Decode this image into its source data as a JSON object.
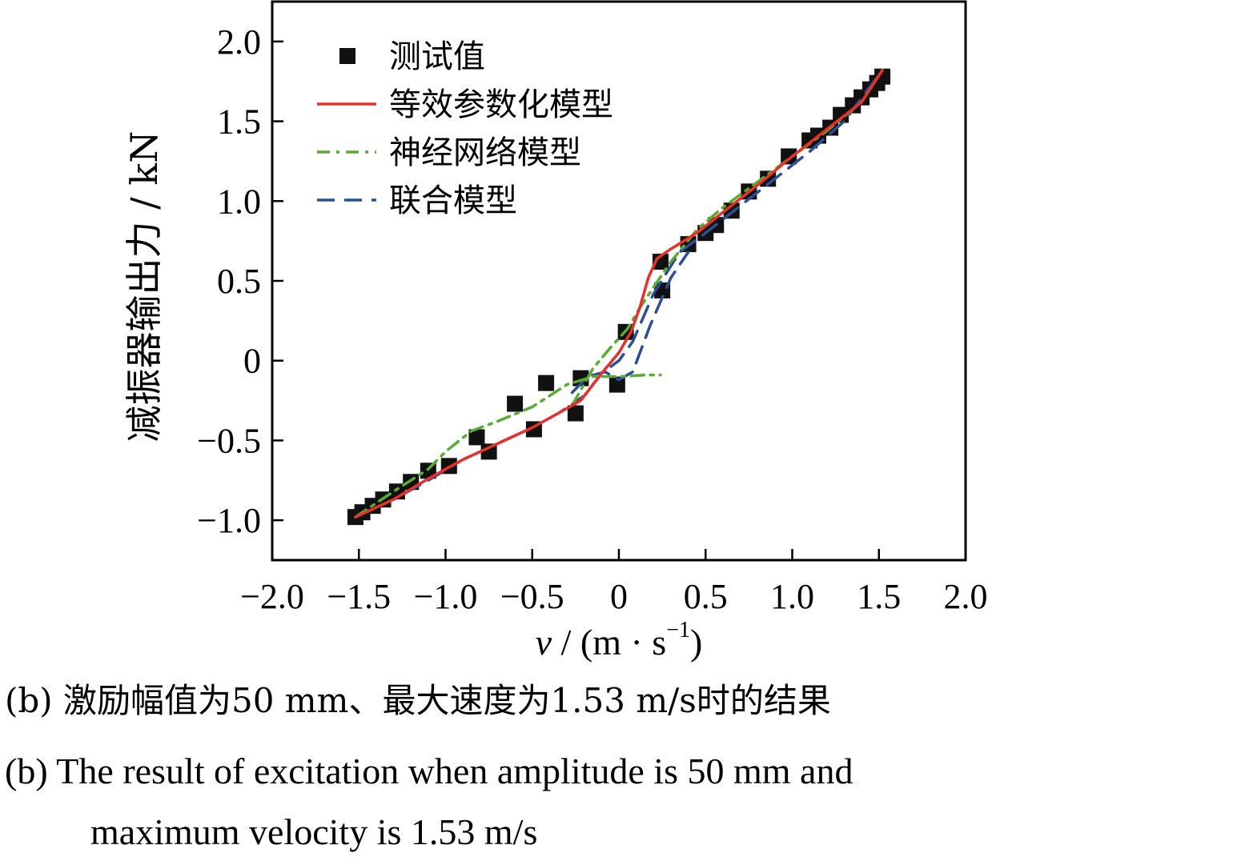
{
  "captions": {
    "zh": "(b)  激励幅值为50 mm、最大速度为1.53  m/s时的结果",
    "en_line1": "(b)  The result of excitation when amplitude is 50 mm and",
    "en_line2": "maximum velocity is 1.53 m/s"
  },
  "chart_data": {
    "type": "line",
    "xlabel": {
      "italic": "v",
      "rest": " / (m · s",
      "sup": "−1",
      "close": ")"
    },
    "ylabel": "减振器输出力 / kN",
    "xlim": [
      -2.0,
      2.0
    ],
    "ylim": [
      -1.25,
      2.25
    ],
    "x_ticks": [
      -2.0,
      -1.5,
      -1.0,
      -0.5,
      0,
      0.5,
      1.0,
      1.5,
      2.0
    ],
    "x_tick_labels": [
      "−2.0",
      "−1.5",
      "−1.0",
      "−0.5",
      "0",
      "0.5",
      "1.0",
      "1.5",
      "2.0"
    ],
    "y_ticks": [
      -1.0,
      -0.5,
      0,
      0.5,
      1.0,
      1.5,
      2.0
    ],
    "y_tick_labels": [
      "−1.0",
      "−0.5",
      "0",
      "0.5",
      "1.0",
      "1.5",
      "2.0"
    ],
    "grid": false,
    "legend_position": "top-left",
    "series": [
      {
        "name": "测试值",
        "style": "scatter",
        "marker": "square",
        "color": "#111111",
        "x": [
          -1.52,
          -1.48,
          -1.42,
          -1.36,
          -1.28,
          -1.2,
          -1.1,
          -0.98,
          -0.82,
          -0.75,
          -0.6,
          -0.49,
          -0.42,
          -0.25,
          -0.22,
          -0.01,
          0.04,
          0.25,
          0.24,
          0.4,
          0.5,
          0.56,
          0.65,
          0.75,
          0.86,
          0.98,
          1.1,
          1.15,
          1.22,
          1.28,
          1.35,
          1.4,
          1.45,
          1.49,
          1.52
        ],
        "y": [
          -0.98,
          -0.95,
          -0.91,
          -0.87,
          -0.82,
          -0.76,
          -0.69,
          -0.66,
          -0.48,
          -0.57,
          -0.27,
          -0.43,
          -0.14,
          -0.33,
          -0.11,
          -0.15,
          0.18,
          0.44,
          0.62,
          0.73,
          0.8,
          0.85,
          0.94,
          1.06,
          1.14,
          1.28,
          1.38,
          1.41,
          1.46,
          1.54,
          1.6,
          1.65,
          1.7,
          1.74,
          1.78
        ]
      },
      {
        "name": "等效参数化模型",
        "style": "solid",
        "color": "#e8302a",
        "x": [
          -1.52,
          -1.3,
          -1.1,
          -0.9,
          -0.7,
          -0.5,
          -0.35,
          -0.22,
          -0.1,
          0.0,
          0.07,
          0.12,
          0.17,
          0.22,
          0.3,
          0.45,
          0.6,
          0.8,
          1.0,
          1.2,
          1.4,
          1.52
        ],
        "y": [
          -0.98,
          -0.87,
          -0.74,
          -0.62,
          -0.52,
          -0.42,
          -0.33,
          -0.25,
          -0.08,
          0.05,
          0.18,
          0.33,
          0.52,
          0.64,
          0.7,
          0.8,
          0.93,
          1.1,
          1.28,
          1.45,
          1.62,
          1.82
        ]
      },
      {
        "name": "神经网络模型",
        "style": "dashdot",
        "color": "#5aab32",
        "x": [
          -1.52,
          -1.3,
          -1.1,
          -1.0,
          -0.85,
          -0.7,
          -0.5,
          -0.3,
          -0.15,
          0.0,
          0.15,
          0.24
        ],
        "y": [
          -0.98,
          -0.82,
          -0.68,
          -0.57,
          -0.44,
          -0.38,
          -0.29,
          -0.15,
          -0.1,
          -0.1,
          -0.09,
          -0.09
        ],
        "x2": [
          -0.27,
          -0.15,
          -0.05,
          0.05,
          0.12,
          0.2,
          0.3,
          0.45,
          0.6,
          0.8,
          1.0,
          1.2,
          1.4,
          1.52
        ],
        "y2": [
          -0.28,
          -0.05,
          0.08,
          0.2,
          0.33,
          0.46,
          0.62,
          0.82,
          0.96,
          1.12,
          1.28,
          1.44,
          1.62,
          1.82
        ]
      },
      {
        "name": "联合模型",
        "style": "dashed",
        "color": "#2d4e96",
        "x": [
          -1.52,
          -1.3,
          -1.1,
          -0.9,
          -0.7,
          -0.5,
          -0.35,
          -0.2,
          -0.1,
          0.0,
          0.08,
          0.2,
          0.35,
          0.5,
          0.7,
          0.9,
          1.1,
          1.3,
          1.52
        ],
        "y": [
          -0.98,
          -0.87,
          -0.75,
          -0.62,
          -0.52,
          -0.42,
          -0.33,
          -0.22,
          -0.08,
          0.0,
          0.12,
          0.42,
          0.68,
          0.8,
          0.97,
          1.14,
          1.31,
          1.5,
          1.82
        ],
        "x2": [
          -0.27,
          -0.18,
          -0.08,
          0.0,
          0.08,
          0.18,
          0.3,
          0.4
        ],
        "y2": [
          -0.2,
          -0.1,
          -0.07,
          -0.12,
          -0.07,
          0.22,
          0.52,
          0.68
        ]
      }
    ]
  }
}
